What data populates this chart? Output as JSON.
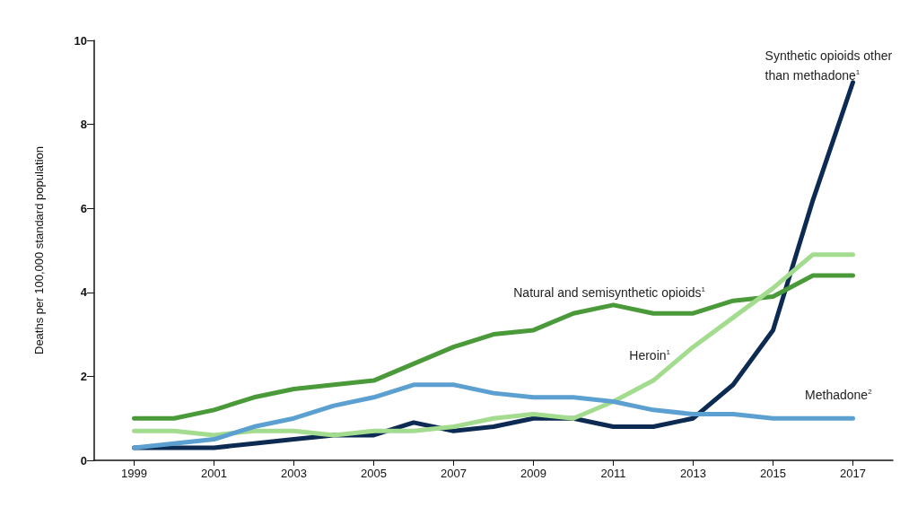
{
  "chart_data": {
    "type": "line",
    "ylabel": "Deaths per 100,000 standard population",
    "x": [
      1999,
      2000,
      2001,
      2002,
      2003,
      2004,
      2005,
      2006,
      2007,
      2008,
      2009,
      2010,
      2011,
      2012,
      2013,
      2014,
      2015,
      2016,
      2017
    ],
    "series": [
      {
        "name": "Synthetic opioids other than methadone$^{1}$",
        "color": "#0d2b52",
        "values": [
          0.3,
          0.3,
          0.3,
          0.4,
          0.5,
          0.6,
          0.6,
          0.9,
          0.7,
          0.8,
          1.0,
          1.0,
          0.8,
          0.8,
          1.0,
          1.8,
          3.1,
          6.2,
          9.0
        ]
      },
      {
        "name": "Natural and semisynthetic opioids$^{1}$",
        "color": "#4a9a3a",
        "values": [
          1.0,
          1.0,
          1.2,
          1.5,
          1.7,
          1.8,
          1.9,
          2.3,
          2.7,
          3.0,
          3.1,
          3.5,
          3.7,
          3.5,
          3.5,
          3.8,
          3.9,
          4.4,
          4.4
        ]
      },
      {
        "name": "Heroin$^{1}$",
        "color": "#a3dc8e",
        "values": [
          0.7,
          0.7,
          0.6,
          0.7,
          0.7,
          0.6,
          0.7,
          0.7,
          0.8,
          1.0,
          1.1,
          1.0,
          1.4,
          1.9,
          2.7,
          3.4,
          4.1,
          4.9,
          4.9
        ]
      },
      {
        "name": "Methadone$^{2}$",
        "color": "#5ba0d0",
        "values": [
          0.3,
          0.4,
          0.5,
          0.8,
          1.0,
          1.3,
          1.5,
          1.8,
          1.8,
          1.6,
          1.5,
          1.5,
          1.4,
          1.2,
          1.1,
          1.1,
          1.0,
          1.0,
          1.0
        ]
      }
    ],
    "xlim": [
      1998,
      2018
    ],
    "xticks": [
      1999,
      2001,
      2003,
      2005,
      2007,
      2009,
      2011,
      2013,
      2015,
      2017
    ],
    "ylim": [
      0,
      10
    ],
    "yticks": [
      0,
      2,
      4,
      6,
      8,
      10
    ],
    "grid": false,
    "legend": false,
    "marker": "none",
    "line_style": "solid"
  }
}
